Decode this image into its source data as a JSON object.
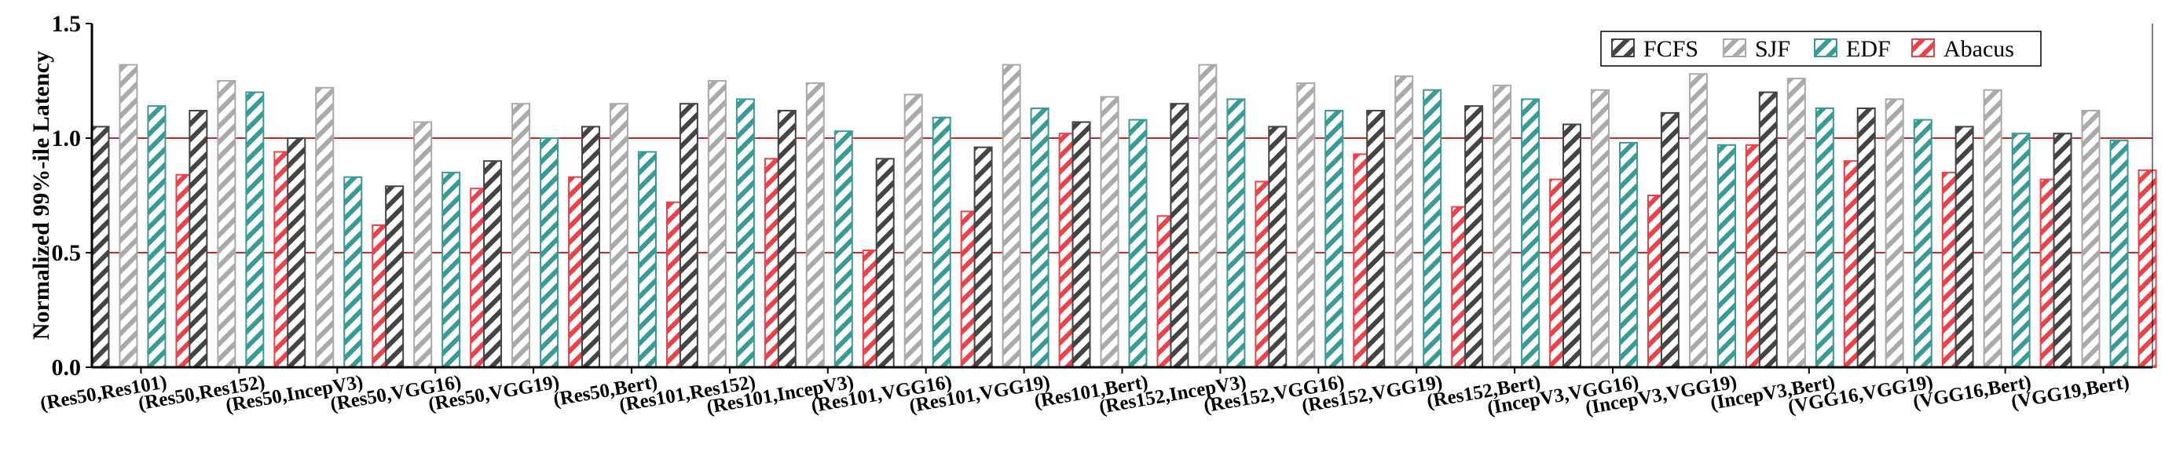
{
  "chart_data": {
    "type": "bar",
    "title": "",
    "xlabel": "",
    "ylabel": "Normalized 99%-ile Latency",
    "ylim": [
      0,
      1.5
    ],
    "yticks": [
      "0.0",
      "0.5",
      "1.0",
      "1.5"
    ],
    "reference_lines": [
      0.5,
      1.0
    ],
    "legend_position": "top-right",
    "categories": [
      "(Res50,Res101)",
      "(Res50,Res152)",
      "(Res50,IncepV3)",
      "(Res50,VGG16)",
      "(Res50,VGG19)",
      "(Res50,Bert)",
      "(Res101,Res152)",
      "(Res101,IncepV3)",
      "(Res101,VGG16)",
      "(Res101,VGG19)",
      "(Res101,Bert)",
      "(Res152,IncepV3)",
      "(Res152,VGG16)",
      "(Res152,VGG19)",
      "(Res152,Bert)",
      "(IncepV3,VGG16)",
      "(IncepV3,VGG19)",
      "(IncepV3,Bert)",
      "(VGG16,VGG19)",
      "(VGG16,Bert)",
      "(VGG19,Bert)"
    ],
    "series": [
      {
        "name": "FCFS",
        "color": "#444444",
        "values": [
          1.05,
          1.12,
          1.0,
          0.79,
          0.9,
          1.05,
          1.15,
          1.12,
          0.91,
          0.96,
          1.07,
          1.15,
          1.05,
          1.12,
          1.14,
          1.06,
          1.11,
          1.2,
          1.13,
          1.05,
          1.02
        ]
      },
      {
        "name": "SJF",
        "color": "#aaaaaa",
        "values": [
          1.32,
          1.25,
          1.22,
          1.07,
          1.15,
          1.15,
          1.25,
          1.24,
          1.19,
          1.32,
          1.18,
          1.32,
          1.24,
          1.27,
          1.23,
          1.21,
          1.28,
          1.26,
          1.17,
          1.21,
          1.12
        ]
      },
      {
        "name": "EDF",
        "color": "#3a9a96",
        "values": [
          1.14,
          1.2,
          0.83,
          0.85,
          1.0,
          0.94,
          1.17,
          1.03,
          1.09,
          1.13,
          1.08,
          1.17,
          1.12,
          1.21,
          1.17,
          0.98,
          0.97,
          1.13,
          1.08,
          1.02,
          0.99
        ]
      },
      {
        "name": "Abacus",
        "color": "#e8434b",
        "values": [
          0.84,
          0.94,
          0.62,
          0.78,
          0.83,
          0.72,
          0.91,
          0.51,
          0.68,
          1.02,
          0.66,
          0.81,
          0.93,
          0.7,
          0.82,
          0.75,
          0.97,
          0.9,
          0.85,
          0.82,
          0.86
        ]
      }
    ]
  }
}
